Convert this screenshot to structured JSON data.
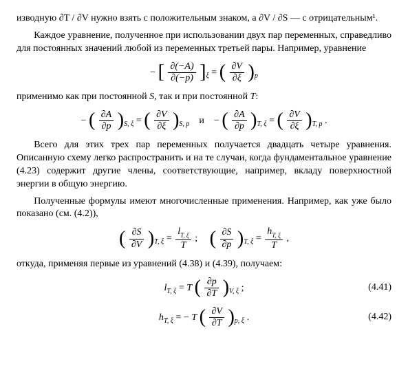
{
  "para1": "изводную ∂T / ∂V нужно взять с положительным знаком, а ∂V / ∂S — с отрицательным¹.",
  "para2": "Каждое уравнение, полученное при использовании двух пар переменных, справедливо для постоянных значений любой из переменных третьей пары. Например, уравнение",
  "eq1": {
    "lhs_num": "∂(−A)",
    "lhs_den": "∂(−p)",
    "lhs_sub": "ξ",
    "rhs_num": "∂V",
    "rhs_den": "∂ξ",
    "rhs_sub": "p"
  },
  "para3_a": "применимо как при постоянной ",
  "para3_s": "S",
  "para3_b": ", так и при постоянной ",
  "para3_t": "T",
  "para3_c": ":",
  "eq2": {
    "t1_num": "∂A",
    "t1_den": "∂p",
    "t1_sub": "S, ξ",
    "t2_num": "∂V",
    "t2_den": "∂ξ",
    "t2_sub": "S, p",
    "and": "и",
    "t3_num": "∂A",
    "t3_den": "∂p",
    "t3_sub": "T, ξ",
    "t4_num": "∂V",
    "t4_den": "∂ξ",
    "t4_sub": "T, p"
  },
  "para4": "Всего для этих трех пар переменных получается двадцать четыре уравнения. Описанную схему легко распространить и на те случаи, когда фундаментальное уравнение (4.23) содержит другие члены, соответствующие, например, вкладу поверхностной энергии в общую энергию.",
  "para5": "Полученные формулы имеют многочисленные применения. Например, как уже было показано (см. (4.2)),",
  "eq3": {
    "a_num": "∂S",
    "a_den": "∂V",
    "a_sub": "T, ξ",
    "a_rhs_num": "l",
    "a_rhs_num_sub": "T, ξ",
    "a_rhs_den": "T",
    "b_num": "∂S",
    "b_den": "∂p",
    "b_sub": "T, ξ",
    "b_rhs_num": "h",
    "b_rhs_num_sub": "T, ξ",
    "b_rhs_den": "T"
  },
  "para6": "откуда, применяя первые из уравнений (4.38) и (4.39), получаем:",
  "eq4": {
    "lhs": "l",
    "lhs_sub": "T, ξ",
    "T": "T",
    "num": "∂p",
    "den": "∂T",
    "sub": "V, ξ",
    "num_ref": "(4.41)"
  },
  "eq5": {
    "lhs": "h",
    "lhs_sub": "T, ξ",
    "T": "T",
    "num": "∂V",
    "den": "∂T",
    "sub": "p, ξ",
    "num_ref": "(4.42)"
  }
}
